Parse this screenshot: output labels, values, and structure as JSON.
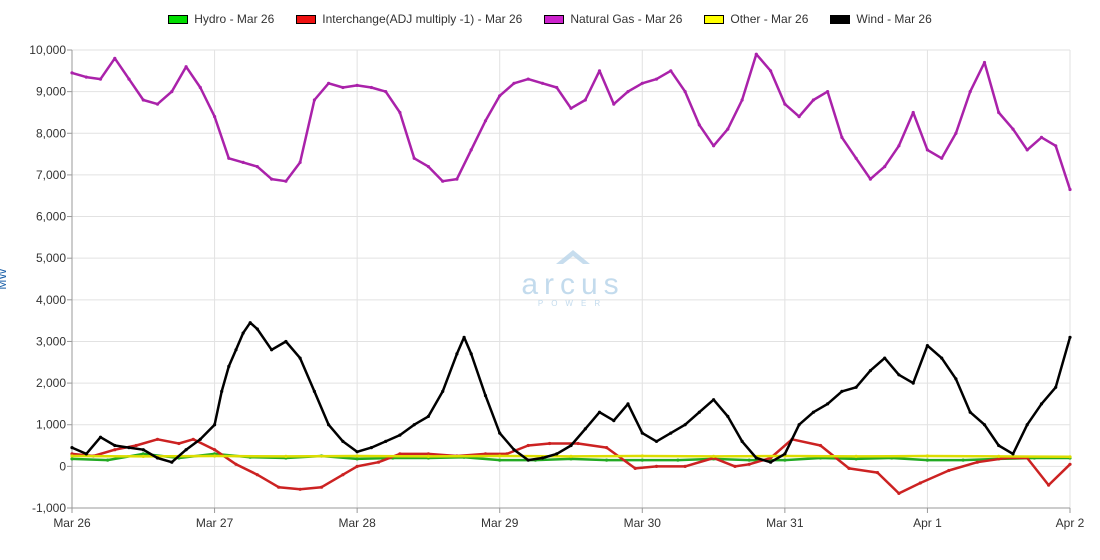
{
  "chart_data": {
    "type": "line",
    "title": "",
    "xlabel": "",
    "ylabel": "MW",
    "ylim": [
      -1000,
      10000
    ],
    "yticks": [
      -1000,
      0,
      1000,
      2000,
      3000,
      4000,
      5000,
      6000,
      7000,
      8000,
      9000,
      10000
    ],
    "ytick_labels": [
      "-1,000",
      "0",
      "1,000",
      "2,000",
      "3,000",
      "4,000",
      "5,000",
      "6,000",
      "7,000",
      "8,000",
      "9,000",
      "10,000"
    ],
    "xlim": [
      0,
      7
    ],
    "xticks": [
      0,
      1,
      2,
      3,
      4,
      5,
      6,
      7
    ],
    "xtick_labels": [
      "Mar 26",
      "Mar 27",
      "Mar 28",
      "Mar 29",
      "Mar 30",
      "Mar 31",
      "Apr 1",
      "Apr 2"
    ],
    "grid": true,
    "legend_position": "top",
    "watermark": "arcus",
    "watermark_sub": "POWER",
    "series": [
      {
        "name": "Hydro - Mar 26",
        "color": "#00dd00",
        "line_color": "#22aa22",
        "x": [
          0,
          0.25,
          0.5,
          0.75,
          1,
          1.25,
          1.5,
          1.75,
          2,
          2.25,
          2.5,
          2.75,
          3,
          3.25,
          3.5,
          3.75,
          4,
          4.25,
          4.5,
          4.75,
          5,
          5.25,
          5.5,
          5.75,
          6,
          6.25,
          6.5,
          6.75,
          7
        ],
        "y": [
          180,
          150,
          300,
          200,
          300,
          220,
          200,
          250,
          180,
          200,
          200,
          220,
          150,
          150,
          180,
          150,
          150,
          150,
          180,
          150,
          150,
          200,
          180,
          200,
          150,
          150,
          180,
          200,
          200
        ]
      },
      {
        "name": "Interchange(ADJ multiply -1) - Mar 26",
        "color": "#ee1111",
        "line_color": "#cc2222",
        "x": [
          0,
          0.15,
          0.3,
          0.45,
          0.6,
          0.75,
          0.85,
          1,
          1.15,
          1.3,
          1.45,
          1.6,
          1.75,
          1.9,
          2,
          2.15,
          2.3,
          2.5,
          2.7,
          2.9,
          3.05,
          3.2,
          3.35,
          3.55,
          3.75,
          3.95,
          4.1,
          4.3,
          4.5,
          4.65,
          4.75,
          4.9,
          5.05,
          5.25,
          5.45,
          5.65,
          5.8,
          5.95,
          6.15,
          6.35,
          6.55,
          6.7,
          6.85,
          7
        ],
        "y": [
          300,
          250,
          400,
          500,
          650,
          550,
          650,
          400,
          50,
          -200,
          -500,
          -550,
          -500,
          -200,
          0,
          100,
          300,
          300,
          250,
          300,
          300,
          500,
          550,
          550,
          450,
          -50,
          0,
          0,
          200,
          0,
          50,
          200,
          650,
          500,
          -50,
          -150,
          -650,
          -400,
          -100,
          100,
          200,
          200,
          -450,
          50
        ]
      },
      {
        "name": "Natural Gas - Mar 26",
        "color": "#cc22cc",
        "line_color": "#aa22aa",
        "x": [
          0,
          0.1,
          0.2,
          0.3,
          0.4,
          0.5,
          0.6,
          0.7,
          0.8,
          0.9,
          1,
          1.1,
          1.2,
          1.3,
          1.4,
          1.5,
          1.6,
          1.7,
          1.8,
          1.9,
          2,
          2.1,
          2.2,
          2.3,
          2.4,
          2.5,
          2.6,
          2.7,
          2.8,
          2.9,
          3,
          3.1,
          3.2,
          3.3,
          3.4,
          3.5,
          3.6,
          3.7,
          3.8,
          3.9,
          4,
          4.1,
          4.2,
          4.3,
          4.4,
          4.5,
          4.6,
          4.7,
          4.8,
          4.9,
          5,
          5.1,
          5.2,
          5.3,
          5.4,
          5.5,
          5.6,
          5.7,
          5.8,
          5.9,
          6,
          6.1,
          6.2,
          6.3,
          6.4,
          6.5,
          6.6,
          6.7,
          6.8,
          6.9,
          7
        ],
        "y": [
          9450,
          9350,
          9300,
          9800,
          9300,
          8800,
          8700,
          9000,
          9600,
          9100,
          8400,
          7400,
          7300,
          7200,
          6900,
          6850,
          7300,
          8800,
          9200,
          9100,
          9150,
          9100,
          9000,
          8500,
          7400,
          7200,
          6850,
          6900,
          7600,
          8300,
          8900,
          9200,
          9300,
          9200,
          9100,
          8600,
          8800,
          9500,
          8700,
          9000,
          9200,
          9300,
          9500,
          9000,
          8200,
          7700,
          8100,
          8800,
          9900,
          9500,
          8700,
          8400,
          8800,
          9000,
          7900,
          7400,
          6900,
          7200,
          7700,
          8500,
          7600,
          7400,
          8000,
          9000,
          9700,
          8500,
          8100,
          7600,
          7900,
          7700,
          6650
        ]
      },
      {
        "name": "Other - Mar 26",
        "color": "#ffff00",
        "line_color": "#dddd00",
        "x": [
          0,
          0.5,
          1,
          1.5,
          2,
          2.5,
          3,
          3.5,
          4,
          4.5,
          5,
          5.5,
          6,
          6.5,
          7
        ],
        "y": [
          250,
          240,
          250,
          240,
          250,
          240,
          250,
          240,
          250,
          240,
          250,
          240,
          250,
          240,
          230
        ]
      },
      {
        "name": "Wind - Mar 26",
        "color": "#000000",
        "line_color": "#000000",
        "x": [
          0,
          0.1,
          0.2,
          0.3,
          0.4,
          0.5,
          0.6,
          0.7,
          0.8,
          0.9,
          1,
          1.05,
          1.1,
          1.15,
          1.2,
          1.25,
          1.3,
          1.4,
          1.5,
          1.6,
          1.7,
          1.8,
          1.9,
          2,
          2.1,
          2.2,
          2.3,
          2.4,
          2.5,
          2.6,
          2.7,
          2.75,
          2.8,
          2.9,
          3,
          3.1,
          3.2,
          3.3,
          3.4,
          3.5,
          3.6,
          3.7,
          3.8,
          3.9,
          4,
          4.1,
          4.2,
          4.3,
          4.4,
          4.5,
          4.6,
          4.7,
          4.8,
          4.9,
          5,
          5.1,
          5.2,
          5.3,
          5.4,
          5.5,
          5.6,
          5.7,
          5.8,
          5.9,
          6,
          6.1,
          6.2,
          6.3,
          6.4,
          6.5,
          6.6,
          6.7,
          6.8,
          6.9,
          7
        ],
        "y": [
          450,
          300,
          700,
          500,
          450,
          400,
          200,
          100,
          400,
          650,
          1000,
          1800,
          2400,
          2800,
          3200,
          3450,
          3300,
          2800,
          3000,
          2600,
          1800,
          1000,
          600,
          350,
          450,
          600,
          750,
          1000,
          1200,
          1800,
          2700,
          3100,
          2700,
          1700,
          800,
          400,
          150,
          200,
          300,
          500,
          900,
          1300,
          1100,
          1500,
          800,
          600,
          800,
          1000,
          1300,
          1600,
          1200,
          600,
          200,
          100,
          300,
          1000,
          1300,
          1500,
          1800,
          1900,
          2300,
          2600,
          2200,
          2000,
          2900,
          2600,
          2100,
          1300,
          1000,
          500,
          300,
          1000,
          1500,
          1900,
          3100
        ]
      }
    ]
  }
}
